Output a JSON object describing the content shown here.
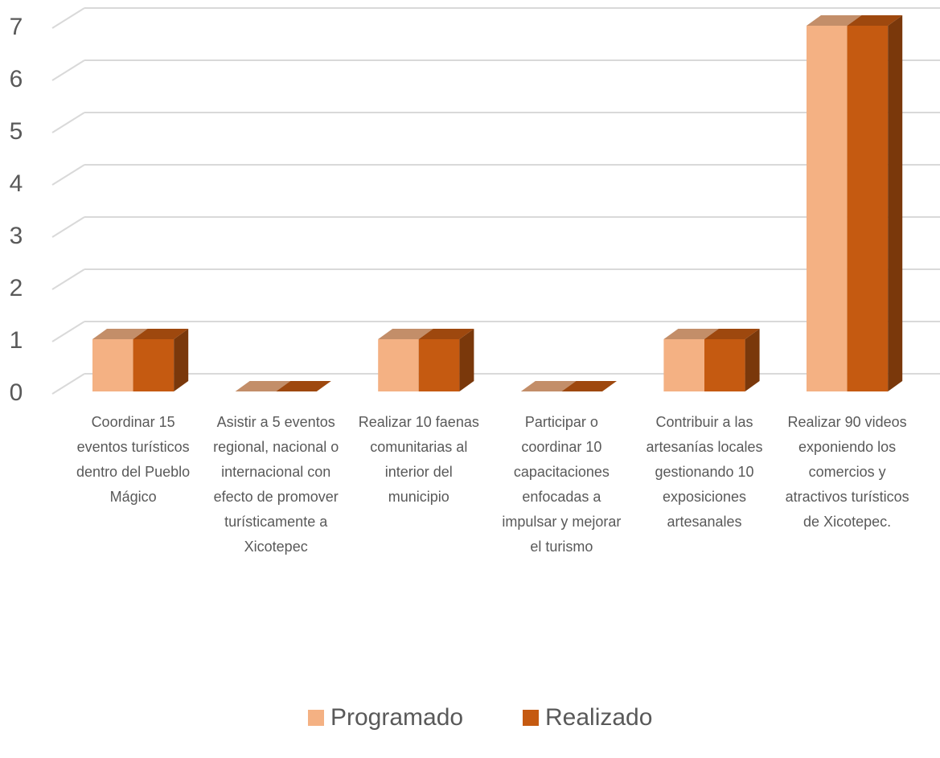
{
  "chart_data": {
    "type": "bar3d",
    "categories": [
      "Coordinar 15 eventos turísticos dentro del Pueblo Mágico",
      "Asistir a 5 eventos regional, nacional o internacional con efecto de promover turísticamente a Xicotepec",
      "Realizar 10 faenas comunitarias al interior del municipio",
      "Participar o coordinar 10 capacitaciones enfocadas a impulsar y mejorar el turismo",
      "Contribuir a las artesanías locales gestionando 10 exposiciones artesanales",
      "Realizar 90 videos exponiendo los comercios y atractivos turísticos de Xicotepec."
    ],
    "series": [
      {
        "name": "Programado",
        "color": "#F4B183",
        "values": [
          1,
          0,
          1,
          0,
          1,
          7
        ]
      },
      {
        "name": "Realizado",
        "color": "#C55A11",
        "values": [
          1,
          0,
          1,
          0,
          1,
          7
        ]
      }
    ],
    "ylim": [
      0,
      7
    ],
    "yticks": [
      0,
      1,
      2,
      3,
      4,
      5,
      6,
      7
    ],
    "grid": true,
    "legend": "bottom"
  }
}
